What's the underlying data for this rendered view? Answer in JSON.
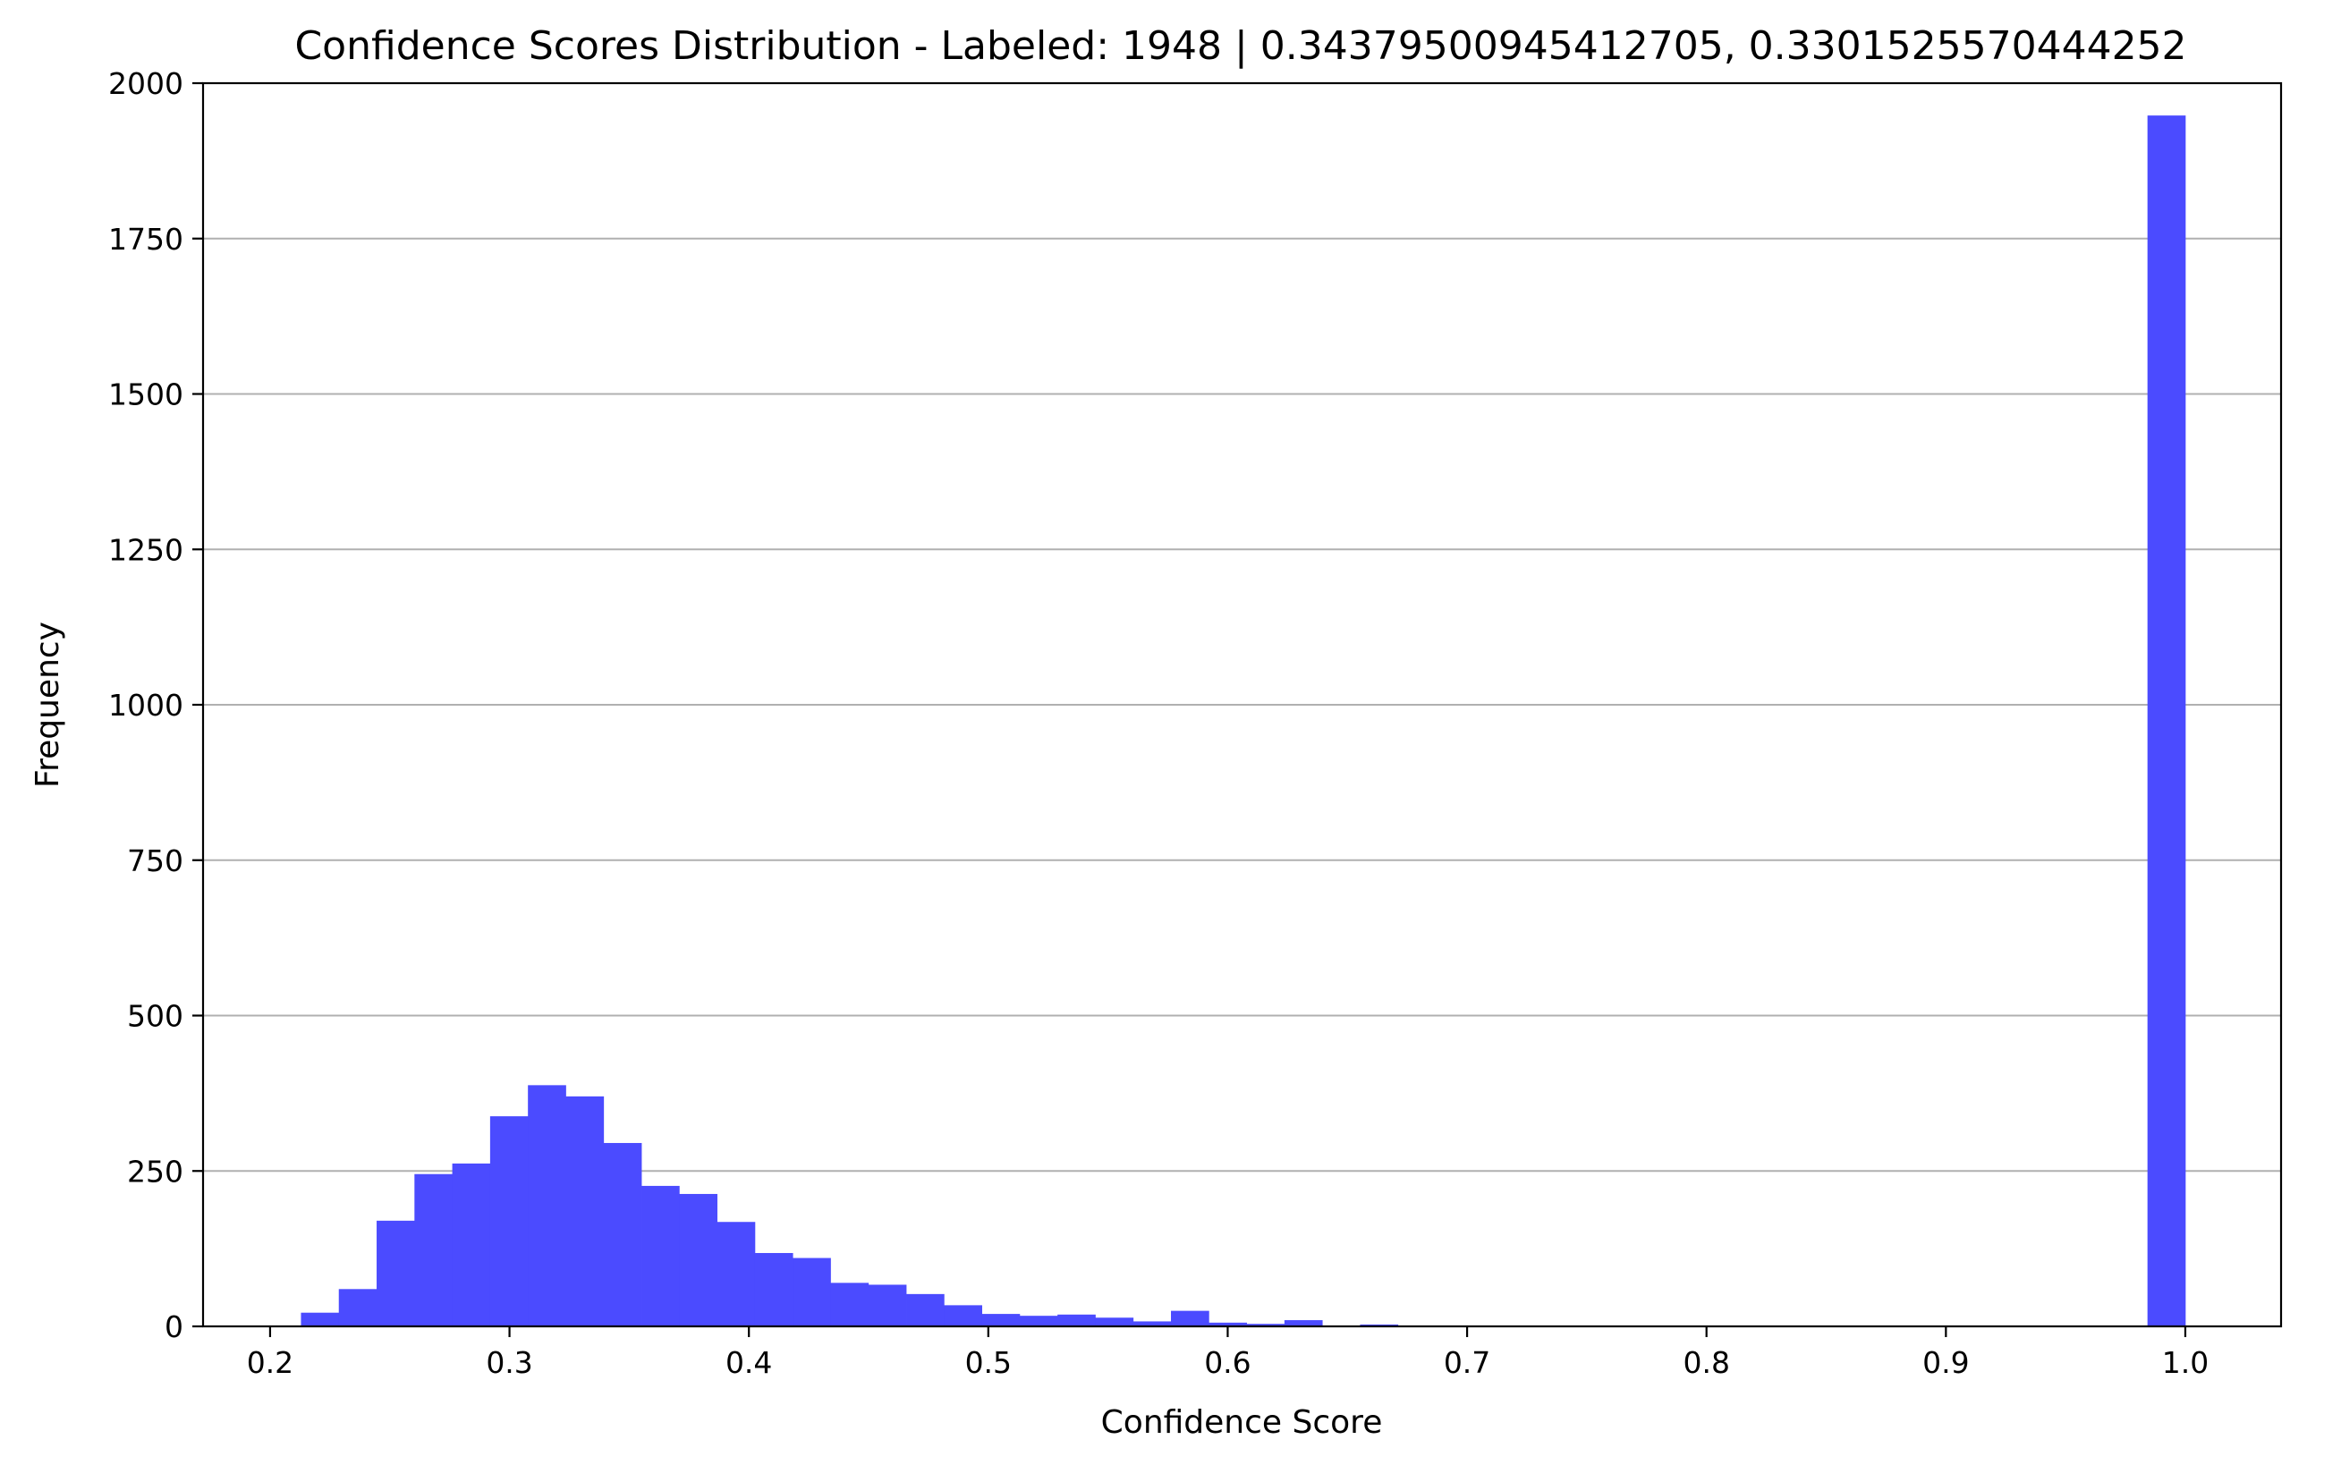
{
  "chart_data": {
    "type": "bar",
    "title": "Confidence Scores Distribution - Labeled: 1948 | 0.34379500945412705, 0.3301525570444252",
    "xlabel": "Confidence Score",
    "ylabel": "Frequency",
    "xlim": [
      0.172,
      1.04
    ],
    "ylim": [
      0,
      2000
    ],
    "grid": "y",
    "bar_color": "#4b4bff",
    "bin_width": 0.0158,
    "x_ticks": [
      "0.2",
      "0.3",
      "0.4",
      "0.5",
      "0.6",
      "0.7",
      "0.8",
      "0.9",
      "1.0"
    ],
    "y_ticks": [
      "0",
      "250",
      "500",
      "750",
      "1000",
      "1250",
      "1500",
      "1750",
      "2000"
    ],
    "bins": [
      {
        "x": 0.2129,
        "value": 22
      },
      {
        "x": 0.2287,
        "value": 60
      },
      {
        "x": 0.2445,
        "value": 170
      },
      {
        "x": 0.2603,
        "value": 245
      },
      {
        "x": 0.2761,
        "value": 262
      },
      {
        "x": 0.2919,
        "value": 338
      },
      {
        "x": 0.3077,
        "value": 388
      },
      {
        "x": 0.3235,
        "value": 370
      },
      {
        "x": 0.3393,
        "value": 295
      },
      {
        "x": 0.3551,
        "value": 226
      },
      {
        "x": 0.3709,
        "value": 213
      },
      {
        "x": 0.3867,
        "value": 168
      },
      {
        "x": 0.4025,
        "value": 118
      },
      {
        "x": 0.4183,
        "value": 110
      },
      {
        "x": 0.4341,
        "value": 70
      },
      {
        "x": 0.4499,
        "value": 67
      },
      {
        "x": 0.4657,
        "value": 52
      },
      {
        "x": 0.4815,
        "value": 34
      },
      {
        "x": 0.4973,
        "value": 20
      },
      {
        "x": 0.5131,
        "value": 17
      },
      {
        "x": 0.5289,
        "value": 19
      },
      {
        "x": 0.5447,
        "value": 14
      },
      {
        "x": 0.5605,
        "value": 8
      },
      {
        "x": 0.5763,
        "value": 25
      },
      {
        "x": 0.5921,
        "value": 6
      },
      {
        "x": 0.6079,
        "value": 4
      },
      {
        "x": 0.6237,
        "value": 10
      },
      {
        "x": 0.6395,
        "value": 1
      },
      {
        "x": 0.6553,
        "value": 3
      },
      {
        "x": 0.6711,
        "value": 1
      },
      {
        "x": 0.9842,
        "value": 1948
      }
    ]
  }
}
